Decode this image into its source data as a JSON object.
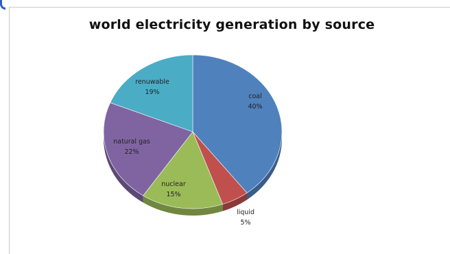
{
  "chart_data": {
    "type": "pie",
    "title": "world electricity generation by source",
    "slices": [
      {
        "label": "coal",
        "value": 40,
        "value_label": "40%",
        "color": "#4f81bd"
      },
      {
        "label": "liquid",
        "value": 5,
        "value_label": "5%",
        "color": "#c0504d"
      },
      {
        "label": "nuclear",
        "value": 15,
        "value_label": "15%",
        "color": "#9bbb59"
      },
      {
        "label": "natural gas",
        "value": 22,
        "value_label": "22%",
        "color": "#8064a2"
      },
      {
        "label": "renuwable",
        "value": 19,
        "value_label": "19%",
        "color": "#4bacc6"
      }
    ],
    "legend": "none"
  }
}
